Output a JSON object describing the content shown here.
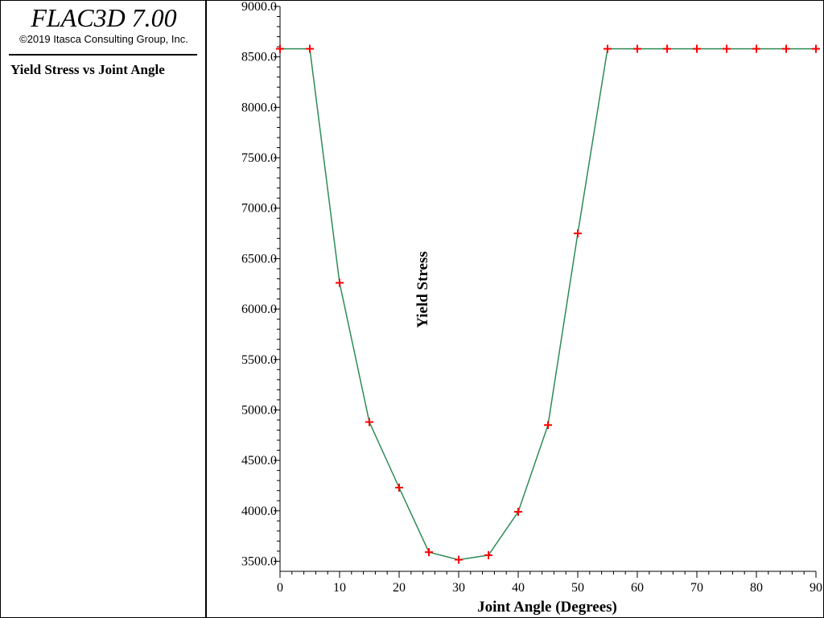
{
  "app": {
    "title": "FLAC3D 7.00",
    "copyright": "©2019 Itasca Consulting Group, Inc."
  },
  "legend": {
    "title": "Yield Stress vs Joint Angle"
  },
  "chart_data": {
    "type": "line",
    "title": "Yield Stress vs Joint Angle",
    "xlabel": "Joint Angle (Degrees)",
    "ylabel": "Yield Stress",
    "xlim": [
      0,
      90
    ],
    "ylim": [
      3400,
      9000
    ],
    "x_ticks": [
      0,
      10,
      20,
      30,
      40,
      50,
      60,
      70,
      80,
      90
    ],
    "y_ticks": [
      3500,
      4000,
      4500,
      5000,
      5500,
      6000,
      6500,
      7000,
      7500,
      8000,
      8500,
      9000
    ],
    "grid": false,
    "line_color": "#2e8b57",
    "marker_color": "#ff0000",
    "marker": "plus",
    "series": [
      {
        "x": [
          0,
          5,
          10,
          15,
          20,
          25,
          30,
          35,
          40,
          45,
          50,
          55,
          60,
          65,
          70,
          75,
          80,
          85,
          90
        ],
        "values": [
          8580,
          8580,
          6260,
          4880,
          4230,
          3590,
          3515,
          3560,
          3990,
          4850,
          6750,
          8580,
          8580,
          8580,
          8580,
          8580,
          8580,
          8580,
          8580
        ]
      }
    ]
  }
}
